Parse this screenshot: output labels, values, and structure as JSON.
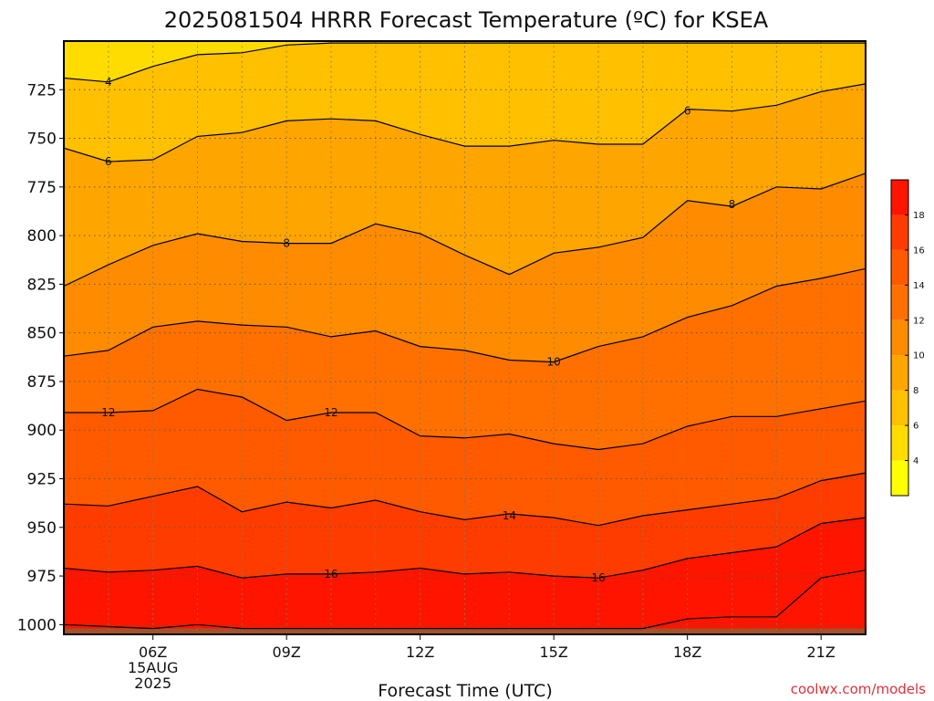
{
  "chart_data": {
    "type": "heatmap",
    "title": "2025081504 HRRR Forecast Temperature (ºC) for KSEA",
    "xlabel": "Forecast Time (UTC)",
    "ylabel": "",
    "credit": "coolwx.com/models",
    "x_hours": [
      4,
      5,
      6,
      7,
      8,
      9,
      10,
      11,
      12,
      13,
      14,
      15,
      16,
      17,
      18,
      19,
      20,
      21,
      22
    ],
    "xlim": [
      4,
      22
    ],
    "ylim": [
      1005,
      700
    ],
    "y_ticks": [
      725,
      750,
      775,
      800,
      825,
      850,
      875,
      900,
      925,
      950,
      975,
      1000
    ],
    "y_tick_labels": [
      "725",
      "750",
      "775",
      "800",
      "825",
      "850",
      "875",
      "900",
      "925",
      "950",
      "975",
      "1000"
    ],
    "x_ticks": [
      {
        "hour": 6,
        "label": "06Z",
        "date": "15AUG",
        "year": "2025"
      },
      {
        "hour": 9,
        "label": "09Z"
      },
      {
        "hour": 12,
        "label": "12Z"
      },
      {
        "hour": 15,
        "label": "15Z"
      },
      {
        "hour": 18,
        "label": "18Z"
      },
      {
        "hour": 21,
        "label": "21Z"
      }
    ],
    "grid": true,
    "ground_level_hpa": 1002,
    "contour_levels": [
      4,
      6,
      8,
      10,
      12,
      14,
      16,
      18
    ],
    "isotherms": [
      {
        "level": 4,
        "pressure": [
          719,
          721,
          713,
          707,
          706,
          702,
          701,
          701,
          701,
          701,
          701,
          701,
          701,
          701,
          701,
          701,
          701,
          701,
          701
        ]
      },
      {
        "level": 6,
        "pressure": [
          755,
          762,
          761,
          749,
          747,
          741,
          740,
          741,
          748,
          754,
          754,
          751,
          753,
          753,
          735,
          736,
          733,
          726,
          722
        ]
      },
      {
        "level": 8,
        "pressure": [
          826,
          815,
          805,
          799,
          803,
          804,
          804,
          794,
          799,
          810,
          820,
          809,
          806,
          801,
          782,
          785,
          775,
          776,
          768
        ]
      },
      {
        "level": 10,
        "pressure": [
          862,
          859,
          847,
          844,
          846,
          847,
          852,
          849,
          857,
          859,
          864,
          865,
          857,
          852,
          842,
          836,
          826,
          822,
          817
        ]
      },
      {
        "level": 12,
        "pressure": [
          891,
          891,
          890,
          879,
          883,
          895,
          891,
          891,
          903,
          904,
          902,
          907,
          910,
          907,
          898,
          893,
          893,
          889,
          885
        ]
      },
      {
        "level": 14,
        "pressure": [
          938,
          939,
          934,
          929,
          942,
          937,
          940,
          936,
          942,
          946,
          943,
          945,
          949,
          944,
          941,
          938,
          935,
          926,
          922
        ]
      },
      {
        "level": 16,
        "pressure": [
          971,
          973,
          972,
          970,
          976,
          974,
          974,
          973,
          971,
          974,
          973,
          975,
          976,
          972,
          966,
          963,
          960,
          948,
          945
        ]
      },
      {
        "level": 18,
        "pressure": [
          1000,
          1001,
          1002,
          1000,
          1002,
          1002,
          1002,
          1002,
          1002,
          1002,
          1002,
          1002,
          1002,
          1002,
          997,
          996,
          996,
          976,
          972
        ]
      }
    ],
    "contour_labels": [
      {
        "level": 4,
        "text": "4",
        "hour": 5.0,
        "pressure": 721
      },
      {
        "level": 6,
        "text": "6",
        "hour": 5.0,
        "pressure": 762
      },
      {
        "level": 6,
        "text": "6",
        "hour": 18.0,
        "pressure": 736
      },
      {
        "level": 8,
        "text": "8",
        "hour": 9.0,
        "pressure": 804
      },
      {
        "level": 8,
        "text": "8",
        "hour": 19.0,
        "pressure": 784
      },
      {
        "level": 10,
        "text": "10",
        "hour": 15.0,
        "pressure": 865
      },
      {
        "level": 12,
        "text": "12",
        "hour": 5.0,
        "pressure": 891
      },
      {
        "level": 12,
        "text": "12",
        "hour": 10.0,
        "pressure": 891
      },
      {
        "level": 14,
        "text": "14",
        "hour": 14.0,
        "pressure": 944
      },
      {
        "level": 16,
        "text": "16",
        "hour": 10.0,
        "pressure": 974
      },
      {
        "level": 16,
        "text": "16",
        "hour": 16.0,
        "pressure": 976
      }
    ],
    "colorbar": {
      "levels": [
        2,
        4,
        6,
        8,
        10,
        12,
        14,
        16,
        18,
        20
      ],
      "tick_labels": [
        "4",
        "6",
        "8",
        "10",
        "12",
        "14",
        "16",
        "18"
      ],
      "colors": [
        "#ffff00",
        "#ffdc00",
        "#ffc000",
        "#ffa500",
        "#ff8c00",
        "#ff7000",
        "#ff5a00",
        "#ff3c00",
        "#ff1400"
      ]
    },
    "ground_color": "#a0522d"
  }
}
